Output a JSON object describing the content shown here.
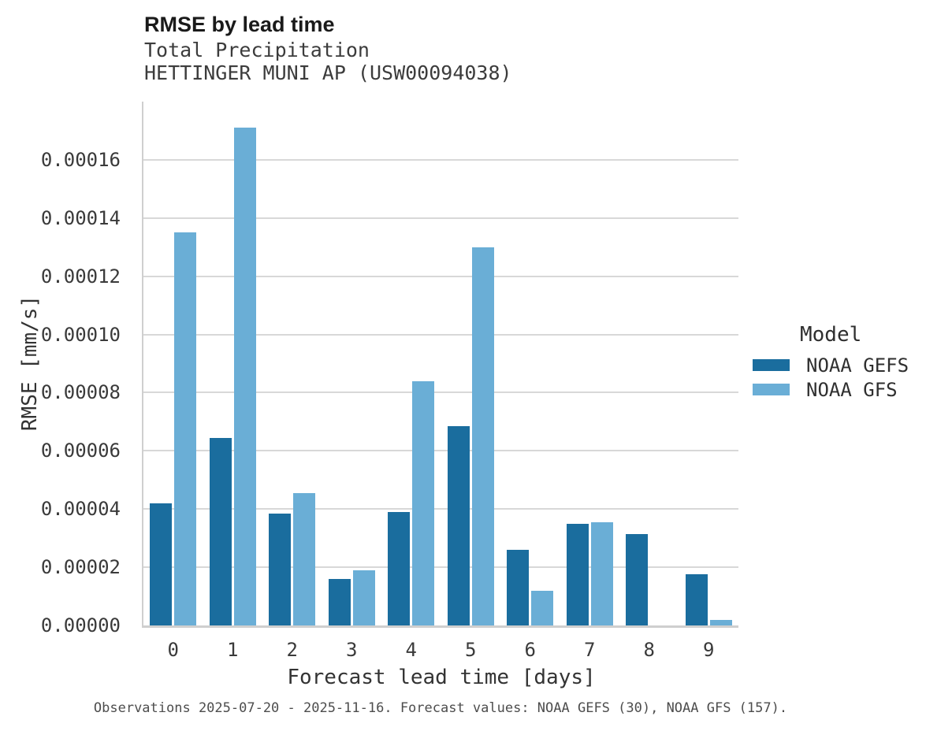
{
  "header": {
    "title": "RMSE by lead time",
    "subtitle1": "Total Precipitation",
    "subtitle2": "HETTINGER MUNI AP (USW00094038)"
  },
  "footer": {
    "caption": "Observations 2025-07-20 - 2025-11-16. Forecast values: NOAA GEFS (30), NOAA GFS (157)."
  },
  "colors": {
    "gefs_dark_blue": "#1a6d9e",
    "gfs_light_blue": "#6aaed6",
    "gridline_gray": "#d8d8d8",
    "spine_gray": "#cfcfcf"
  },
  "chart_data": {
    "type": "bar",
    "title": "RMSE by lead time",
    "subtitle": [
      "Total Precipitation",
      "HETTINGER MUNI AP (USW00094038)"
    ],
    "xlabel": "Forecast lead time [days]",
    "ylabel": "RMSE [mm/s]",
    "categories": [
      "0",
      "1",
      "2",
      "3",
      "4",
      "5",
      "6",
      "7",
      "8",
      "9"
    ],
    "series": [
      {
        "name": "NOAA GEFS",
        "color": "#1a6d9e",
        "values": [
          4.2e-05,
          6.45e-05,
          3.85e-05,
          1.6e-05,
          3.9e-05,
          6.85e-05,
          2.6e-05,
          3.5e-05,
          3.15e-05,
          1.75e-05
        ]
      },
      {
        "name": "NOAA GFS",
        "color": "#6aaed6",
        "values": [
          0.000135,
          0.000171,
          4.55e-05,
          1.9e-05,
          8.4e-05,
          0.00013,
          1.2e-05,
          3.55e-05,
          null,
          2e-06
        ]
      }
    ],
    "ylim": [
      0,
      0.00018
    ],
    "ytick_values": [
      0,
      2e-05,
      4e-05,
      6e-05,
      8e-05,
      0.0001,
      0.00012,
      0.00014,
      0.00016
    ],
    "ytick_labels": [
      "0.00000",
      "0.00002",
      "0.00004",
      "0.00006",
      "0.00008",
      "0.00010",
      "0.00012",
      "0.00014",
      "0.00016"
    ],
    "grid": true,
    "legend": {
      "title": "Model",
      "position": "right"
    }
  }
}
